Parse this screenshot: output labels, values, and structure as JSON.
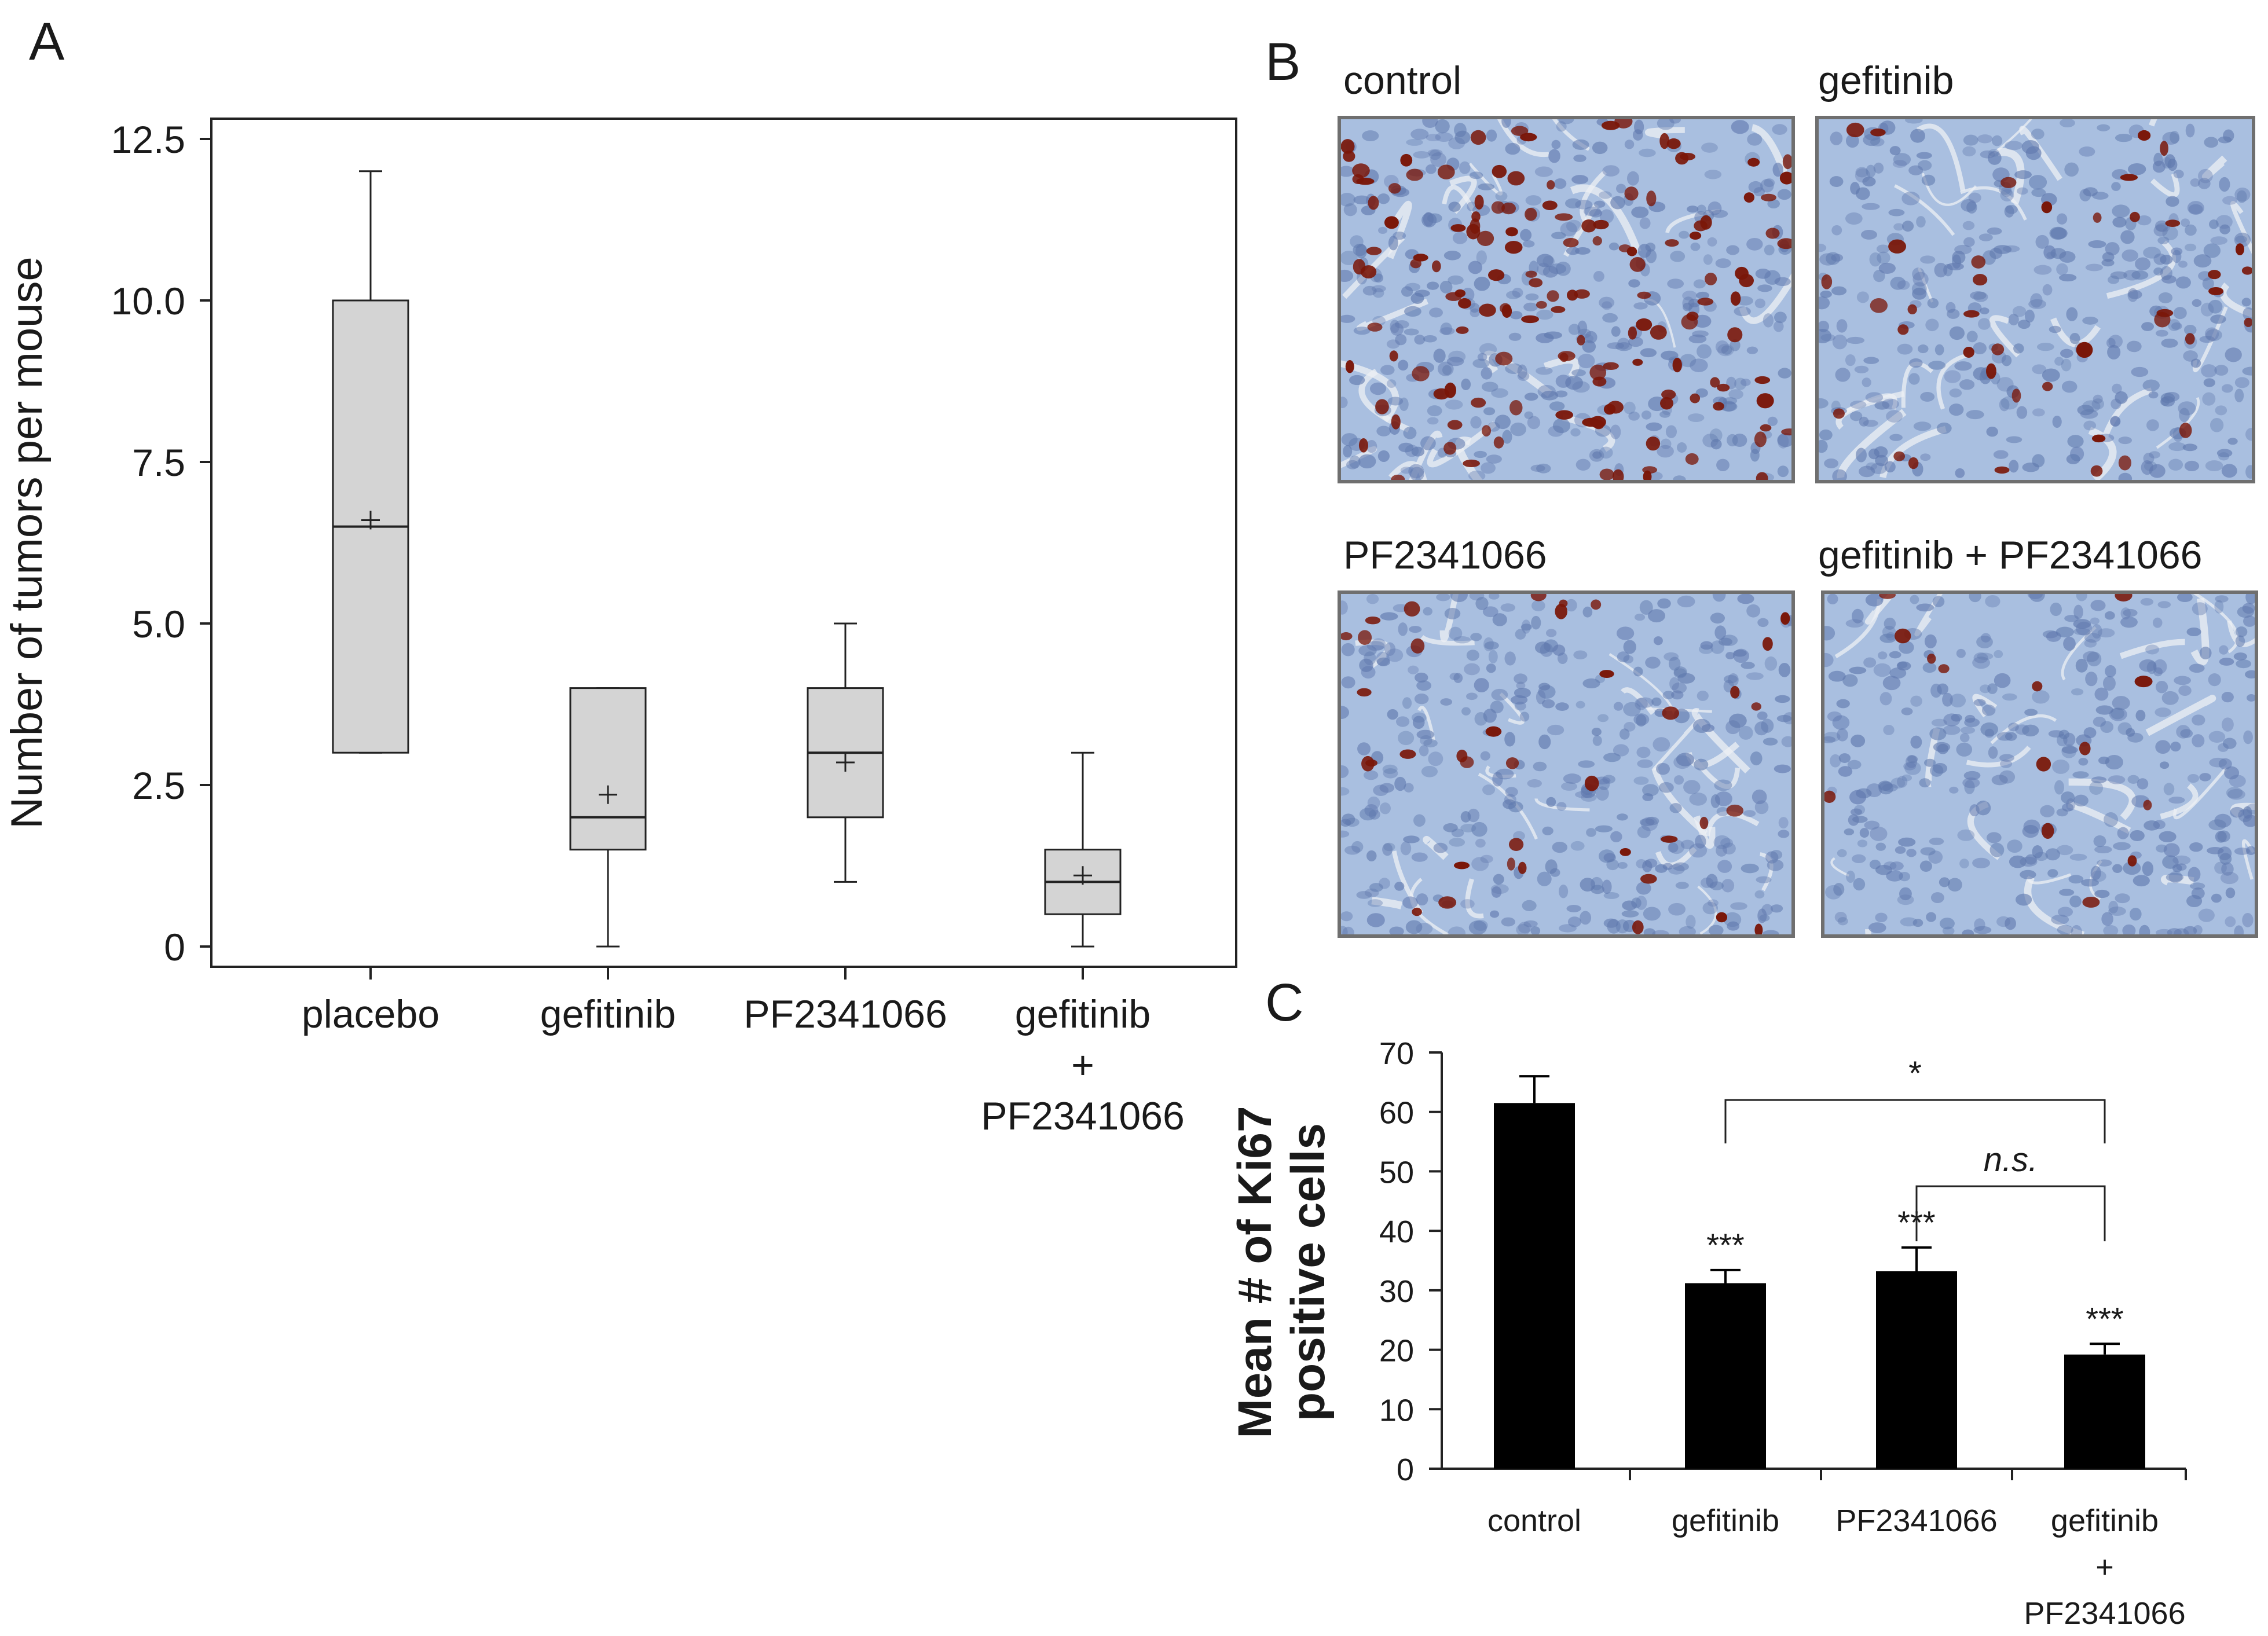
{
  "panels": {
    "a": "A",
    "b": "B",
    "c": "C"
  },
  "chart_data": [
    {
      "type": "box",
      "panel": "A",
      "ylabel": "Number of tumors per mouse",
      "xlabel": "",
      "ylim": [
        0,
        12.5
      ],
      "yticks": [
        "0",
        "2.5",
        "5.0",
        "7.5",
        "10.0",
        "12.5"
      ],
      "categories": [
        {
          "lines": [
            "placebo"
          ]
        },
        {
          "lines": [
            "gefitinib"
          ]
        },
        {
          "lines": [
            "PF2341066"
          ]
        },
        {
          "lines": [
            "gefitinib",
            "+",
            "PF2341066"
          ]
        }
      ],
      "boxes": [
        {
          "min": 3,
          "q1": 3,
          "median": 6.5,
          "q3": 10,
          "max": 12,
          "mean": 6.6
        },
        {
          "min": 0,
          "q1": 1.5,
          "median": 2,
          "q3": 4,
          "max": 4,
          "mean": 2.35
        },
        {
          "min": 1,
          "q1": 2,
          "median": 3,
          "q3": 4,
          "max": 5,
          "mean": 2.85
        },
        {
          "min": 0,
          "q1": 0.5,
          "median": 1,
          "q3": 1.5,
          "max": 3,
          "mean": 1.1
        }
      ],
      "box_color": "#d4d4d4"
    },
    {
      "type": "bar",
      "panel": "C",
      "ylabel_lines": [
        "Mean # of Ki67",
        "positive cells"
      ],
      "ylim": [
        0,
        70
      ],
      "yticks": [
        "0",
        "10",
        "20",
        "30",
        "40",
        "50",
        "60",
        "70"
      ],
      "categories": [
        {
          "lines": [
            "control"
          ]
        },
        {
          "lines": [
            "gefitinib"
          ]
        },
        {
          "lines": [
            "PF2341066"
          ]
        },
        {
          "lines": [
            "gefitinib",
            "+",
            "PF2341066"
          ]
        }
      ],
      "values": [
        61.5,
        31.2,
        33.2,
        19.2
      ],
      "errors": [
        4.5,
        2.2,
        4.0,
        1.8
      ],
      "annotations": [
        "",
        "***",
        "***",
        "***"
      ],
      "brackets": [
        {
          "from": 1,
          "to": 3,
          "y": 62,
          "label": "*",
          "italic": false
        },
        {
          "from": 2,
          "to": 3,
          "y": 47.5,
          "label": "n.s.",
          "italic": true
        }
      ],
      "bar_color": "#000000"
    }
  ],
  "micrographs": [
    {
      "label": "control",
      "density": 140
    },
    {
      "label": "gefitinib",
      "density": 40
    },
    {
      "label": "PF2341066",
      "density": 38
    },
    {
      "label": "gefitinib + PF2341066",
      "density": 14
    }
  ],
  "stain_colors": {
    "background": "#a9bfe0",
    "nuclei": "#5f78ad",
    "positive": "#7a1608",
    "stroma": "#eef0f4"
  }
}
